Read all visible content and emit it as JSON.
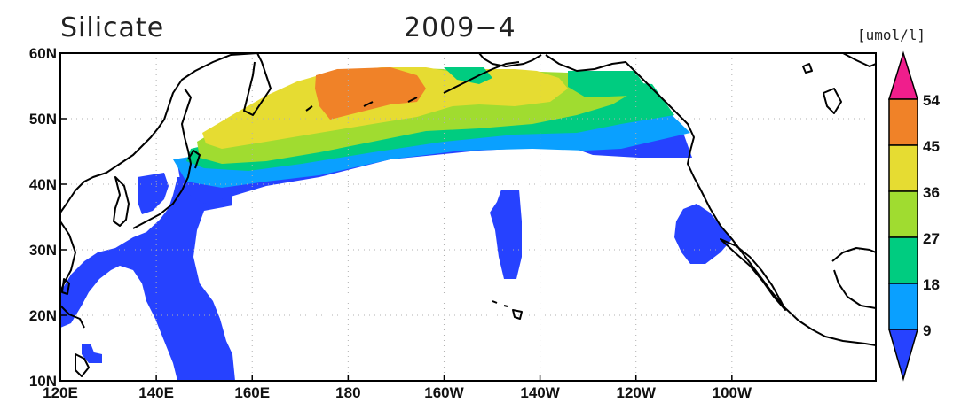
{
  "title": {
    "variable": "Silicate",
    "date": "2009−4"
  },
  "units": "[umol/l]",
  "colors": {
    "c9": "#2642ff",
    "c18": "#0aa0ff",
    "c27": "#00cc80",
    "c36": "#a0dc30",
    "c45": "#e6dc32",
    "c54": "#f08228",
    "cmax": "#f01e8c",
    "coast": "#000000",
    "grid": "#b0b0b0"
  },
  "map": {
    "lon_range": [
      120,
      290
    ],
    "lat_range": [
      10,
      60
    ],
    "x_ticks": [
      {
        "lon": 120,
        "label": "120E"
      },
      {
        "lon": 140,
        "label": "140E"
      },
      {
        "lon": 160,
        "label": "160E"
      },
      {
        "lon": 180,
        "label": "180"
      },
      {
        "lon": 200,
        "label": "160W"
      },
      {
        "lon": 220,
        "label": "140W"
      },
      {
        "lon": 240,
        "label": "120W"
      },
      {
        "lon": 260,
        "label": "100W"
      }
    ],
    "y_ticks": [
      {
        "lat": 10,
        "label": "10N"
      },
      {
        "lat": 20,
        "label": "20N"
      },
      {
        "lat": 30,
        "label": "30N"
      },
      {
        "lat": 40,
        "label": "40N"
      },
      {
        "lat": 50,
        "label": "50N"
      },
      {
        "lat": 60,
        "label": "60N"
      }
    ]
  },
  "colorbar": {
    "levels": [
      "9",
      "18",
      "27",
      "36",
      "45",
      "54"
    ]
  }
}
